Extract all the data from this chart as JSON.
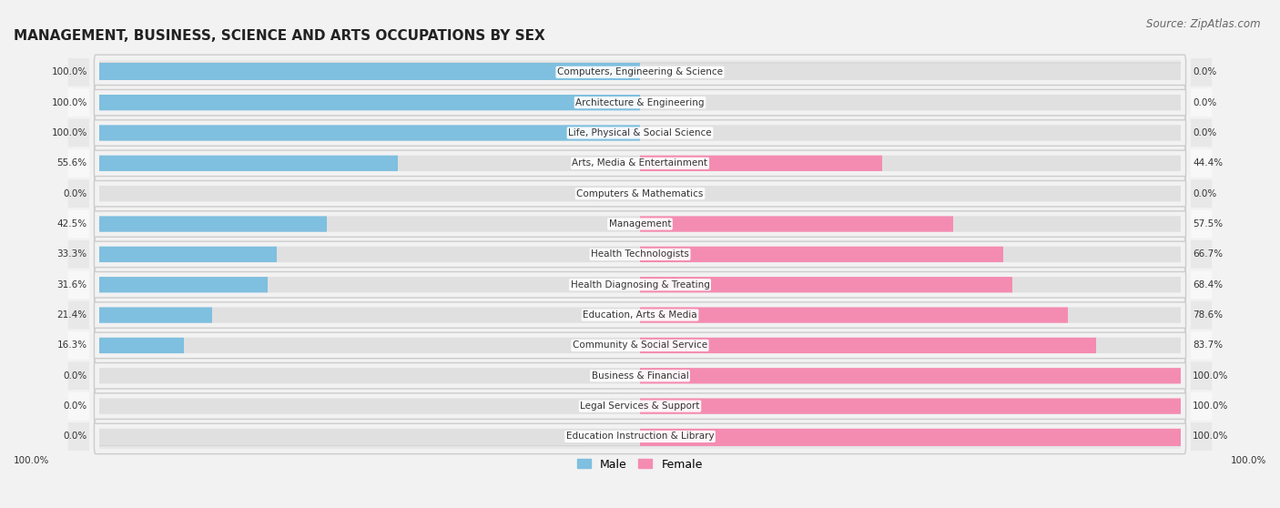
{
  "title": "MANAGEMENT, BUSINESS, SCIENCE AND ARTS OCCUPATIONS BY SEX",
  "source": "Source: ZipAtlas.com",
  "categories": [
    "Computers, Engineering & Science",
    "Architecture & Engineering",
    "Life, Physical & Social Science",
    "Arts, Media & Entertainment",
    "Computers & Mathematics",
    "Management",
    "Health Technologists",
    "Health Diagnosing & Treating",
    "Education, Arts & Media",
    "Community & Social Service",
    "Business & Financial",
    "Legal Services & Support",
    "Education Instruction & Library"
  ],
  "male": [
    100.0,
    100.0,
    100.0,
    55.6,
    0.0,
    42.5,
    33.3,
    31.6,
    21.4,
    16.3,
    0.0,
    0.0,
    0.0
  ],
  "female": [
    0.0,
    0.0,
    0.0,
    44.4,
    0.0,
    57.5,
    66.7,
    68.4,
    78.6,
    83.7,
    100.0,
    100.0,
    100.0
  ],
  "male_color": "#7fbfdf",
  "female_color": "#f48cb1",
  "male_label": "Male",
  "female_label": "Female",
  "bg_color": "#f2f2f2",
  "row_colors": [
    "#e8e8e8",
    "#f8f8f8"
  ],
  "title_fontsize": 11,
  "source_fontsize": 8.5,
  "label_fontsize": 7.5,
  "bar_label_fontsize": 7.5,
  "bar_height": 0.62,
  "xlim": 100.0,
  "total_width": 100.0
}
